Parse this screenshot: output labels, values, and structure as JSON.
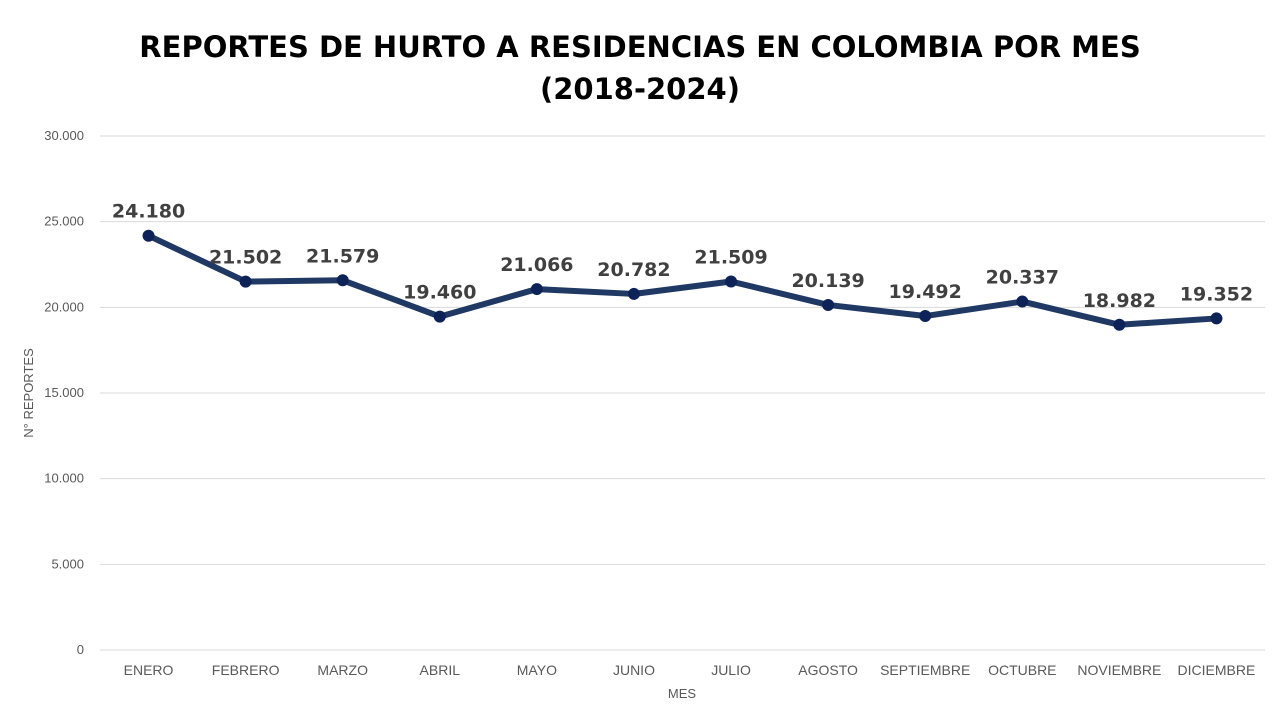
{
  "chart_data": {
    "type": "line",
    "title": "REPORTES DE HURTO A RESIDENCIAS EN COLOMBIA POR MES\n(2018-2024)",
    "xlabel": "MES",
    "ylabel": "N° REPORTES",
    "categories": [
      "ENERO",
      "FEBRERO",
      "MARZO",
      "ABRIL",
      "MAYO",
      "JUNIO",
      "JULIO",
      "AGOSTO",
      "SEPTIEMBRE",
      "OCTUBRE",
      "NOVIEMBRE",
      "DICIEMBRE"
    ],
    "values": [
      24180,
      21502,
      21579,
      19460,
      21066,
      20782,
      21509,
      20139,
      19492,
      20337,
      18982,
      19352
    ],
    "data_labels": [
      "24.180",
      "21.502",
      "21.579",
      "19.460",
      "21.066",
      "20.782",
      "21.509",
      "20.139",
      "19.492",
      "20.337",
      "18.982",
      "19.352"
    ],
    "ylim": [
      0,
      30000
    ],
    "yticks": [
      0,
      5000,
      10000,
      15000,
      20000,
      25000,
      30000
    ],
    "ytick_labels": [
      "0",
      "5.000",
      "10.000",
      "15.000",
      "20.000",
      "25.000",
      "30.000"
    ],
    "grid": true,
    "legend": "none",
    "line_color": "#1f3864",
    "marker_color": "#0d2357"
  }
}
